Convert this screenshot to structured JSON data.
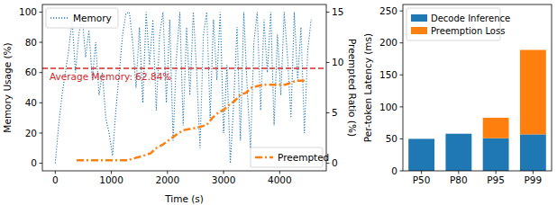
{
  "chart_data": [
    {
      "type": "line",
      "x": [
        0,
        60,
        120,
        180,
        240,
        300,
        360,
        420,
        480,
        540,
        600,
        660,
        720,
        780,
        840,
        900,
        960,
        1020,
        1080,
        1140,
        1200,
        1260,
        1320,
        1380,
        1440,
        1500,
        1560,
        1620,
        1680,
        1740,
        1800,
        1860,
        1920,
        1980,
        2040,
        2100,
        2160,
        2220,
        2280,
        2340,
        2400,
        2460,
        2520,
        2580,
        2640,
        2700,
        2760,
        2820,
        2880,
        2940,
        3000,
        3060,
        3120,
        3180,
        3240,
        3300,
        3360,
        3420,
        3480,
        3540,
        3600,
        3660,
        3720,
        3780,
        3840,
        3900,
        3960,
        4020,
        4080,
        4140,
        4200,
        4260,
        4320,
        4380,
        4440,
        4500,
        4560
      ],
      "xlim": [
        -230,
        4830
      ],
      "xticks": [
        0,
        1000,
        2000,
        3000,
        4000
      ],
      "ylim": [
        -5,
        105
      ],
      "yticks": [
        0,
        20,
        40,
        60,
        80,
        100
      ],
      "y2lim": [
        -0.75,
        15.75
      ],
      "y2ticks": [
        0,
        5,
        10,
        15
      ],
      "x_label": "Time (s)",
      "y_label": "Memory Usage (%)",
      "y2_label": "Preempted Ratio (%)",
      "legend": "upper left",
      "series": [
        {
          "name": "Memory",
          "color": "#1f77b4",
          "line_style": "dotted",
          "values": [
            0,
            25,
            45,
            60,
            75,
            95,
            60,
            85,
            98,
            70,
            88,
            55,
            80,
            45,
            60,
            30,
            20,
            5,
            35,
            60,
            85,
            99,
            100,
            80,
            50,
            90,
            40,
            100,
            65,
            95,
            35,
            85,
            100,
            40,
            95,
            15,
            70,
            100,
            25,
            90,
            45,
            100,
            60,
            10,
            85,
            100,
            30,
            95,
            55,
            100,
            20,
            65,
            0,
            40,
            90,
            15,
            100,
            50,
            10,
            80,
            100,
            35,
            95,
            60,
            100,
            25,
            85,
            45,
            100,
            70,
            30,
            100,
            55,
            90,
            20,
            75,
            95
          ]
        },
        {
          "name": "Preempted",
          "color": "#ff7f0e",
          "line_style": "dashdot",
          "axis": "y2",
          "x": [
            380,
            1300,
            1350,
            1600,
            1700,
            1800,
            1900,
            2000,
            2100,
            2200,
            2300,
            2500,
            2700,
            2800,
            2900,
            3000,
            3100,
            3200,
            3300,
            3400,
            3500,
            3700,
            3900,
            4100,
            4300,
            4450
          ],
          "values": [
            0.3,
            0.3,
            0.4,
            0.8,
            1.0,
            1.5,
            1.8,
            2.2,
            2.6,
            3.0,
            3.3,
            3.5,
            3.8,
            4.5,
            5.0,
            5.3,
            5.8,
            6.2,
            6.8,
            7.0,
            7.5,
            7.8,
            7.8,
            7.8,
            8.2,
            8.2
          ]
        }
      ],
      "reference_line": {
        "value": 62.84,
        "label": "Average Memory: 62.84%",
        "color": "#d62728",
        "line_style": "dashed"
      }
    },
    {
      "type": "bar",
      "stacked": true,
      "categories": [
        "P50",
        "P80",
        "P95",
        "P99"
      ],
      "ylim": [
        0,
        260
      ],
      "yticks": [
        0,
        50,
        100,
        150,
        200,
        250
      ],
      "y_label": "Per-token Latency (ms)",
      "legend": "upper left",
      "series": [
        {
          "name": "Decode Inference",
          "color": "#1f77b4",
          "values": [
            50,
            58,
            51,
            57
          ]
        },
        {
          "name": "Preemption Loss",
          "color": "#ff7f0e",
          "values": [
            0,
            0,
            32,
            132
          ]
        }
      ]
    }
  ]
}
